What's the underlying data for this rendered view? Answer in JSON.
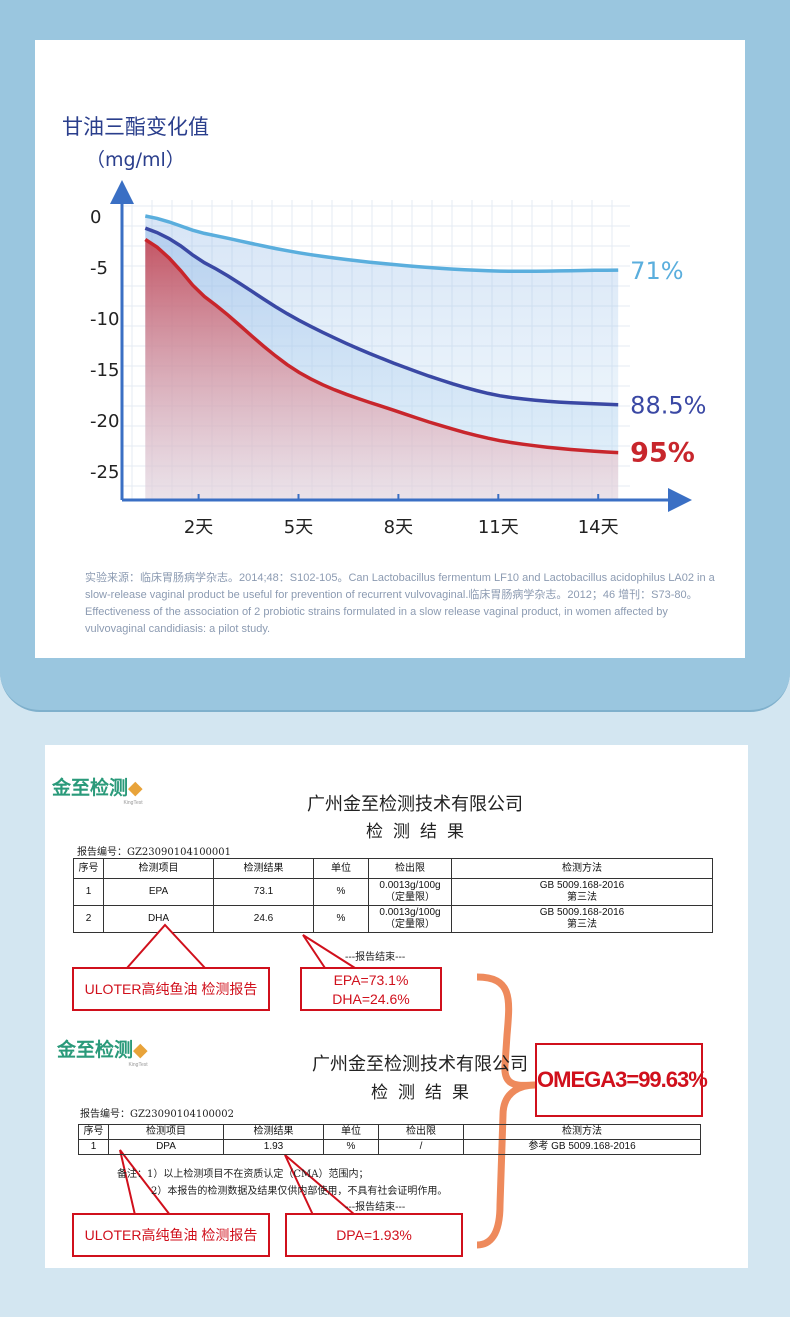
{
  "chart_data": {
    "type": "area",
    "title": "甘油三酯变化值",
    "ylabel": "（mg/ml）",
    "yticks": [
      "0",
      "-5",
      "-10",
      "-15",
      "-20",
      "-25"
    ],
    "ytick_values": [
      0,
      -5,
      -10,
      -15,
      -20,
      -25
    ],
    "xticks": [
      "2天",
      "5天",
      "8天",
      "11天",
      "14天"
    ],
    "xtick_values": [
      2,
      5,
      8,
      11,
      14
    ],
    "ylim": [
      -28,
      1
    ],
    "xlim": [
      0,
      15.5
    ],
    "grid": true,
    "x": [
      0.4,
      2,
      5,
      8,
      11,
      14.6
    ],
    "series": [
      {
        "name": "71%",
        "label": "71%",
        "color": "#5aaedd",
        "values": [
          0,
          -1.6,
          -3.6,
          -4.8,
          -5.4,
          -5.3
        ]
      },
      {
        "name": "88.5%",
        "label": "88.5%",
        "color": "#3a48a4",
        "values": [
          -1.2,
          -4.3,
          -10.2,
          -14.6,
          -17.6,
          -18.5
        ]
      },
      {
        "name": "95%",
        "label": "95%",
        "color": "#c8262c",
        "values": [
          -2.3,
          -7.5,
          -15.3,
          -19.2,
          -22,
          -23.2
        ]
      }
    ]
  },
  "source": "实验来源：临床胃肠病学杂志。2014;48：S102-105。Can Lactobacillus fermentum LF10 and Lactobacillus acidophilus LA02 in a slow-release vaginal product be useful for prevention of recurrent vulvovaginal.临床胃肠病学杂志。2012；46 增刊：S73-80。Effectiveness of the association of 2 probiotic strains formulated in a slow release vaginal product, in women affected by vulvovaginal candidiasis: a pilot study.",
  "report1": {
    "logo": "金至检测",
    "logo_sub": "KingTest",
    "company": "广州金至检测技术有限公司",
    "title": "检测结果",
    "number": "报告编号：GZ23090104100001",
    "headers": [
      "序号",
      "检测项目",
      "检测结果",
      "单位",
      "检出限",
      "检测方法"
    ],
    "rows": [
      [
        "1",
        "EPA",
        "73.1",
        "%",
        "0.0013g/100g",
        "（定量限）",
        "GB 5009.168-2016",
        "第三法"
      ],
      [
        "2",
        "DHA",
        "24.6",
        "%",
        "0.0013g/100g",
        "（定量限）",
        "GB 5009.168-2016",
        "第三法"
      ]
    ],
    "end": "---报告结束---",
    "callout_left": "ULOTER高纯鱼油 检测报告",
    "callout_right": [
      "EPA=73.1%",
      "DHA=24.6%"
    ]
  },
  "report2": {
    "logo": "金至检测",
    "logo_sub": "KingTest",
    "company": "广州金至检测技术有限公司",
    "title": "检测结果",
    "number": "报告编号：GZ23090104100002",
    "headers": [
      "序号",
      "检测项目",
      "检测结果",
      "单位",
      "检出限",
      "检测方法"
    ],
    "rows": [
      [
        "1",
        "DPA",
        "1.93",
        "%",
        "/",
        "参考 GB 5009.168-2016"
      ]
    ],
    "note1": "备注：1）以上检测项目不在资质认定（CMA）范围内；",
    "note2": "2）本报告的检测数据及结果仅供内部使用，不具有社会证明作用。",
    "end": "---报告结束---",
    "callout_left": "ULOTER高纯鱼油 检测报告",
    "callout_right": "DPA=1.93%"
  },
  "total": "OMEGA3=99.63%"
}
